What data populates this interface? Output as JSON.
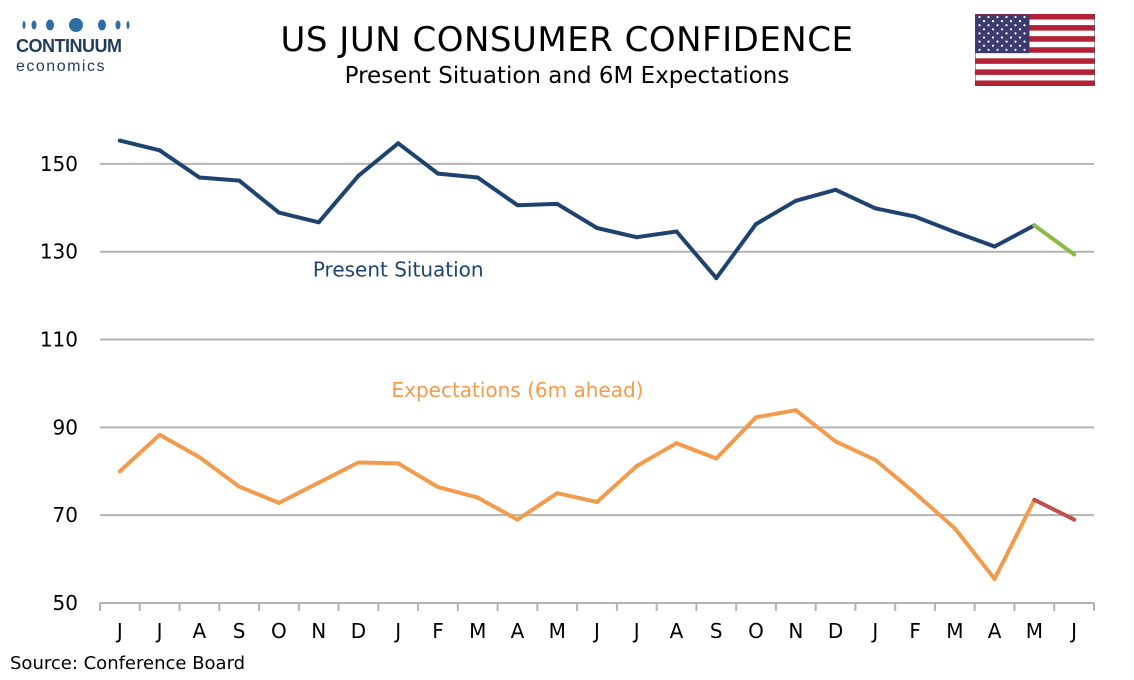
{
  "header": {
    "logo_word": "CONTINUUM",
    "logo_sub": "economics",
    "title": "US JUN CONSUMER CONFIDENCE",
    "subtitle": "Present Situation and 6M Expectations",
    "flag_icon": "us-flag-icon"
  },
  "footer": {
    "source": "Source: Conference Board"
  },
  "colors": {
    "present": "#1f4370",
    "present_latest": "#8db84a",
    "expectations": "#f29b4d",
    "expectations_latest": "#c0504d",
    "grid": "#b3b3b3",
    "logo": "#1f3b5e"
  },
  "chart_data": {
    "type": "line",
    "categories": [
      "J",
      "J",
      "A",
      "S",
      "O",
      "N",
      "D",
      "J",
      "F",
      "M",
      "A",
      "M",
      "J",
      "J",
      "A",
      "S",
      "O",
      "N",
      "D",
      "J",
      "F",
      "M",
      "A",
      "M",
      "J"
    ],
    "ylim": [
      50,
      160
    ],
    "yticks": [
      50,
      70,
      90,
      110,
      130,
      150
    ],
    "xlabel": "",
    "ylabel": "",
    "grid": true,
    "series": [
      {
        "name": "Present Situation",
        "label_anchor": 7,
        "label_value": 126,
        "values": [
          155.3,
          153.1,
          146.9,
          146.2,
          138.9,
          136.7,
          147.3,
          154.7,
          147.8,
          146.9,
          140.6,
          140.9,
          135.4,
          133.3,
          134.6,
          124.0,
          136.3,
          141.6,
          144.1,
          139.9,
          138.0,
          134.5,
          131.2,
          136.0,
          129.4
        ],
        "latest_from": 23
      },
      {
        "name": "Expectations (6m ahead)",
        "label_anchor": 10,
        "label_value": 98.5,
        "values": [
          80.0,
          88.3,
          83.2,
          76.5,
          72.8,
          77.4,
          82.0,
          81.8,
          76.4,
          74.0,
          69.0,
          75.0,
          73.0,
          81.2,
          86.4,
          82.9,
          92.3,
          93.9,
          86.8,
          82.6,
          75.0,
          67.0,
          55.5,
          73.5,
          69.0
        ],
        "latest_from": 23
      }
    ]
  }
}
